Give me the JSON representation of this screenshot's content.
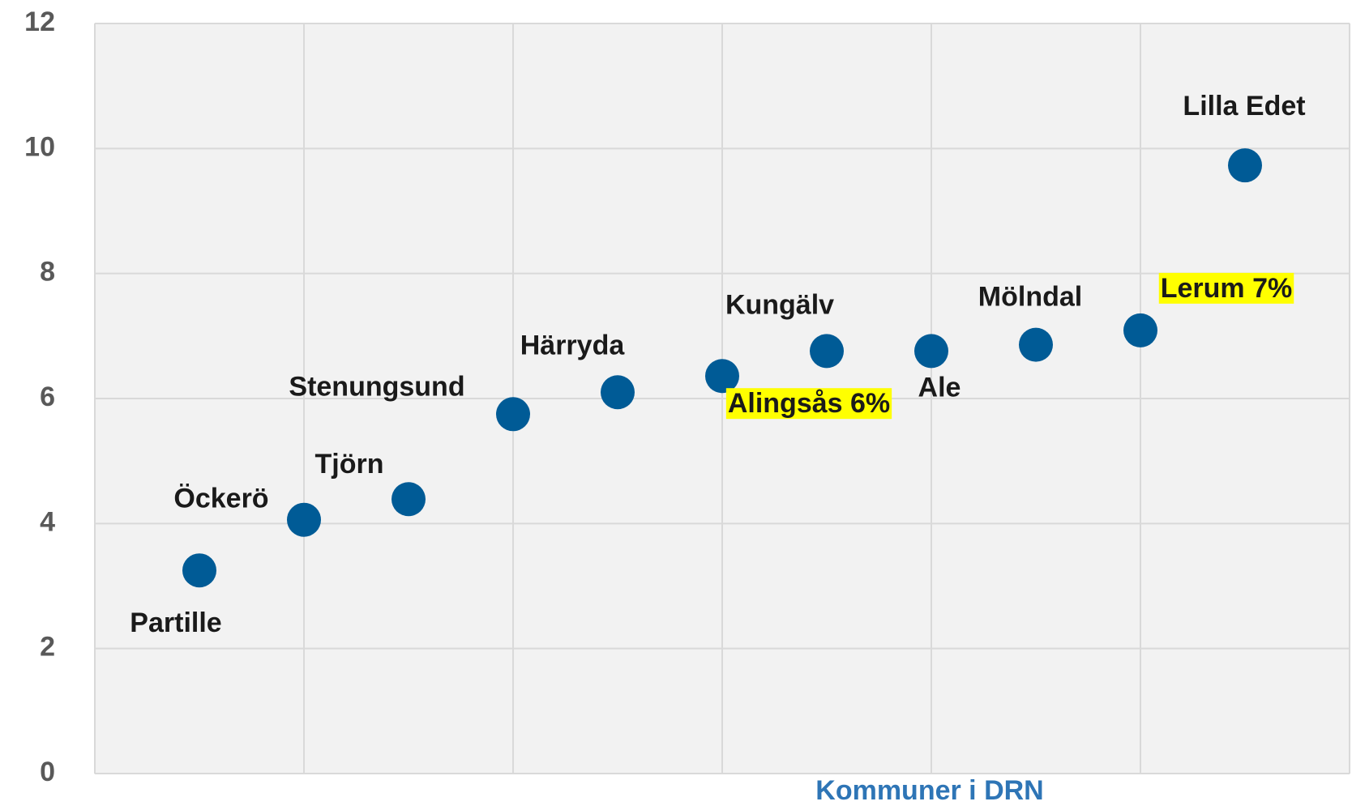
{
  "chart_data": {
    "type": "scatter",
    "x": [
      0.5,
      1,
      1.5,
      2,
      2.5,
      3,
      3.5,
      4,
      4.5,
      5,
      5.5
    ],
    "series": [
      {
        "color": "#005b96",
        "values": [
          3.25,
          4.06,
          4.39,
          5.75,
          6.1,
          6.36,
          6.76,
          6.76,
          6.86,
          7.09,
          9.73
        ],
        "labels": [
          "Partille",
          "Öckerö",
          "Tjörn",
          "Stenungsund",
          "Härryda",
          "Alingsås 6%",
          "Kungälv",
          "Ale",
          "Mölndal",
          "Lerum 7%",
          "Lilla Edet"
        ],
        "highlight": [
          false,
          false,
          false,
          false,
          false,
          true,
          false,
          false,
          false,
          true,
          false
        ]
      }
    ],
    "xlabel": "Kommuner i DRN",
    "xlim": [
      0,
      6
    ],
    "xticks": [
      0,
      1,
      2,
      3,
      4,
      5,
      6
    ],
    "ylim": [
      0,
      12
    ],
    "yticks": [
      0,
      2,
      4,
      6,
      8,
      10,
      12
    ],
    "grid": true,
    "highlight_color": "#ffff00"
  }
}
